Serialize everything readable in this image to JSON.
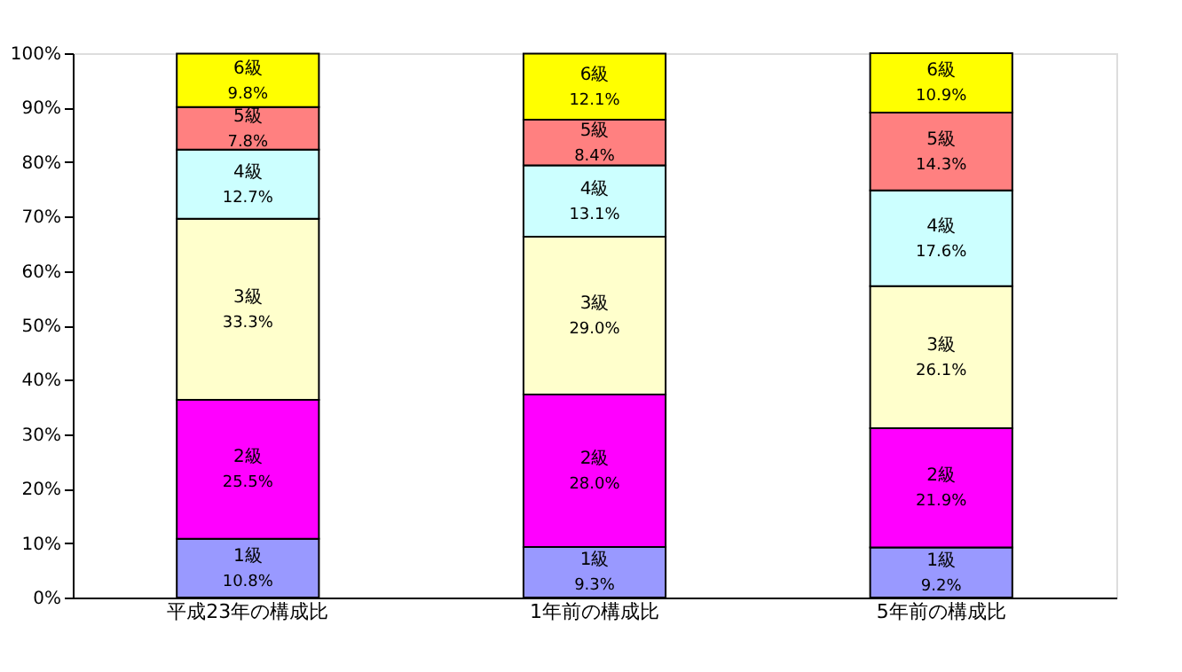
{
  "chart_data": {
    "type": "bar",
    "stacked": true,
    "categories": [
      "平成23年の構成比",
      "1年前の構成比",
      "5年前の構成比"
    ],
    "series": [
      {
        "name": "1級",
        "color": "#9999ff",
        "values": [
          10.8,
          9.3,
          9.2
        ],
        "value_labels": [
          "10.8%",
          "9.3%",
          "9.2%"
        ]
      },
      {
        "name": "2級",
        "color": "#ff00ff",
        "values": [
          25.5,
          28.0,
          21.9
        ],
        "value_labels": [
          "25.5%",
          "28.0%",
          "21.9%"
        ]
      },
      {
        "name": "3級",
        "color": "#ffffcc",
        "values": [
          33.3,
          29.0,
          26.1
        ],
        "value_labels": [
          "33.3%",
          "29.0%",
          "26.1%"
        ]
      },
      {
        "name": "4級",
        "color": "#ccffff",
        "values": [
          12.7,
          13.1,
          17.6
        ],
        "value_labels": [
          "12.7%",
          "13.1%",
          "17.6%"
        ]
      },
      {
        "name": "5級",
        "color": "#ff8080",
        "values": [
          7.8,
          8.4,
          14.3
        ],
        "value_labels": [
          "7.8%",
          "8.4%",
          "14.3%"
        ]
      },
      {
        "name": "6級",
        "color": "#ffff00",
        "values": [
          9.8,
          12.1,
          10.9
        ],
        "value_labels": [
          "9.8%",
          "12.1%",
          "10.9%"
        ]
      }
    ],
    "ylim": [
      0,
      100
    ],
    "yticks": [
      {
        "value": 0,
        "label": "0%"
      },
      {
        "value": 10,
        "label": "10%"
      },
      {
        "value": 20,
        "label": "20%"
      },
      {
        "value": 30,
        "label": "30%"
      },
      {
        "value": 40,
        "label": "40%"
      },
      {
        "value": 50,
        "label": "50%"
      },
      {
        "value": 60,
        "label": "60%"
      },
      {
        "value": 70,
        "label": "70%"
      },
      {
        "value": 80,
        "label": "80%"
      },
      {
        "value": 90,
        "label": "90%"
      },
      {
        "value": 100,
        "label": "100%"
      }
    ],
    "grid": false,
    "legend": false
  }
}
